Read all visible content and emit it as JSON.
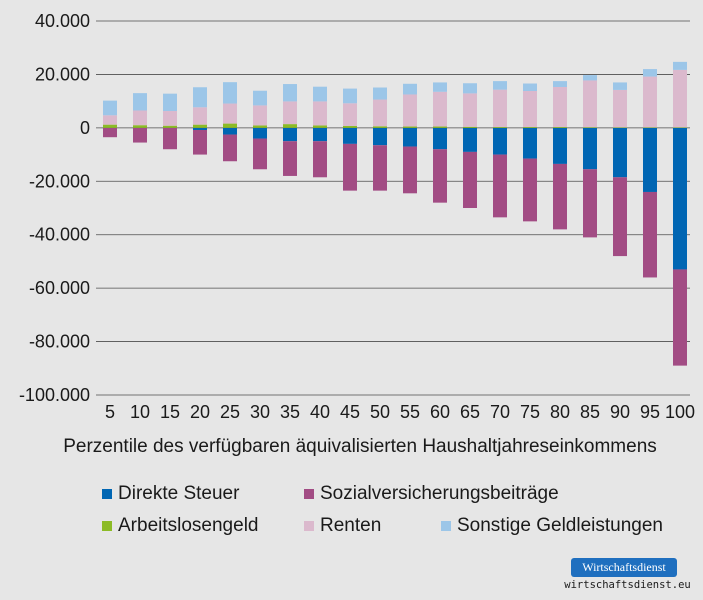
{
  "chart_data": {
    "type": "bar",
    "stacked": true,
    "categories": [
      "5",
      "10",
      "15",
      "20",
      "25",
      "30",
      "35",
      "40",
      "45",
      "50",
      "55",
      "60",
      "65",
      "70",
      "75",
      "80",
      "85",
      "90",
      "95",
      "100"
    ],
    "xlabel": "Perzentile des verfügbaren äquivalisierten Haushaltjahreseinkommens",
    "ylim": [
      -100000,
      40000
    ],
    "yticks": [
      40000,
      20000,
      0,
      -20000,
      -40000,
      -60000,
      -80000,
      -100000
    ],
    "ytick_labels": [
      "40.000",
      "20.000",
      "0",
      "-20.000",
      "-40.000",
      "-60.000",
      "-80.000",
      "-100.000"
    ],
    "grid": true,
    "legend_position": "bottom",
    "series": [
      {
        "name": "Direkte Steuer",
        "color": "#0066b3",
        "values": [
          0,
          0,
          0,
          -800,
          -2500,
          -4000,
          -5000,
          -5000,
          -6000,
          -6500,
          -7000,
          -8000,
          -9000,
          -10000,
          -11500,
          -13500,
          -15500,
          -18500,
          -24000,
          -53000
        ]
      },
      {
        "name": "Sozialversicherungsbeiträge",
        "color": "#a24c84",
        "values": [
          -3500,
          -5500,
          -8000,
          -9200,
          -10000,
          -11500,
          -13000,
          -13500,
          -17500,
          -17000,
          -17500,
          -20000,
          -21000,
          -23500,
          -23500,
          -24500,
          -25500,
          -29500,
          -32000,
          -36000
        ]
      },
      {
        "name": "Arbeitslosengeld",
        "color": "#8cbb26",
        "values": [
          1200,
          1000,
          800,
          1200,
          1600,
          900,
          1400,
          900,
          700,
          600,
          500,
          500,
          400,
          300,
          300,
          300,
          250,
          200,
          200,
          200
        ]
      },
      {
        "name": "Renten",
        "color": "#dbb9cd",
        "values": [
          3500,
          5500,
          5500,
          6500,
          7500,
          7500,
          8500,
          9000,
          8500,
          10000,
          12000,
          13000,
          12500,
          14000,
          13500,
          15000,
          17500,
          14000,
          19000,
          21500
        ]
      },
      {
        "name": "Sonstige Geldleistungen",
        "color": "#9cc6e8",
        "values": [
          5500,
          6500,
          6500,
          7500,
          8000,
          5500,
          6500,
          5500,
          5500,
          4500,
          4000,
          3500,
          3800,
          3200,
          2800,
          2200,
          2000,
          2800,
          2800,
          3000
        ]
      }
    ]
  },
  "brand": {
    "logo_text": "Wirtschaftsdienst",
    "url": "wirtschaftsdienst.eu"
  }
}
